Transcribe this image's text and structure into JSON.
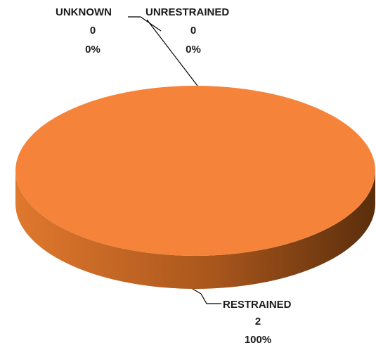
{
  "chart_data": {
    "type": "pie",
    "style": "3d",
    "legend": "none",
    "colors": {
      "slice_top": "#F5843A",
      "slice_side_light": "#E0782E",
      "slice_side_dark": "#5A2E0C",
      "leader_line": "#000000",
      "label_text": "#1a1a1a"
    },
    "slices": [
      {
        "label": "UNKNOWN",
        "value": 0,
        "percent": "0%"
      },
      {
        "label": "UNRESTRAINED",
        "value": 0,
        "percent": "0%"
      },
      {
        "label": "RESTRAINED",
        "value": 2,
        "percent": "100%"
      }
    ]
  }
}
